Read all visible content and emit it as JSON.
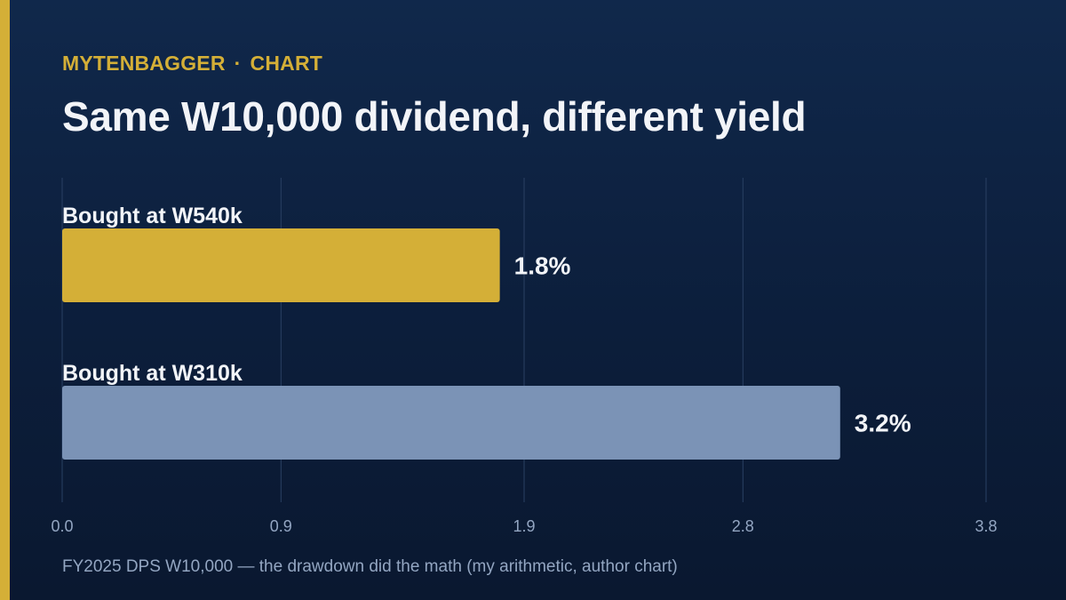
{
  "brand": {
    "name": "MYTENBAGGER",
    "separator": "·",
    "section": "CHART"
  },
  "colors": {
    "accent": "#d4af37",
    "background": "#0c1e3b",
    "bar_primary": "#d4af37",
    "bar_secondary": "#7b93b6",
    "grid": "#2a4063",
    "text": "#f2f4f8",
    "muted": "#93a6c2"
  },
  "chart_data": {
    "type": "bar",
    "orientation": "horizontal",
    "title": "Same W10,000 dividend, different yield",
    "categories": [
      "Bought at W540k",
      "Bought at W310k"
    ],
    "values": [
      1.8,
      3.2
    ],
    "value_labels": [
      "1.8%",
      "3.2%"
    ],
    "bar_colors": [
      "#d4af37",
      "#7b93b6"
    ],
    "xlim": [
      0,
      3.8
    ],
    "xticks": [
      0.0,
      0.9,
      1.9,
      2.8,
      3.8
    ],
    "xtick_labels": [
      "0.0",
      "0.9",
      "1.9",
      "2.8",
      "3.8"
    ],
    "xlabel": "",
    "ylabel": "",
    "grid": "vertical",
    "legend": "none"
  },
  "footnote": "FY2025 DPS W10,000 — the drawdown did the math (my arithmetic, author chart)"
}
